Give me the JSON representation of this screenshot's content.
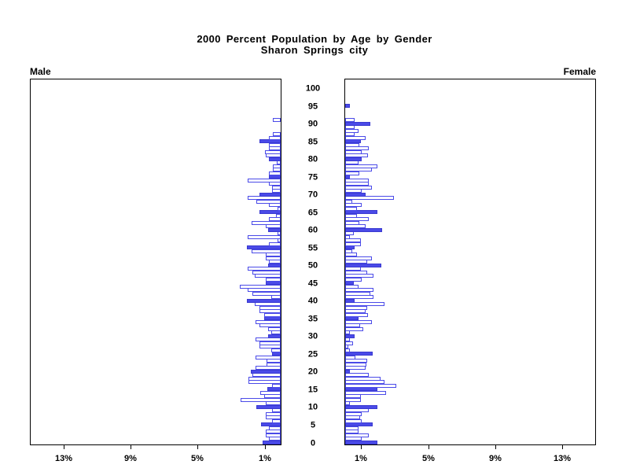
{
  "header": {
    "title_line1": "2000 Percent Population by Age by Gender",
    "title_line2": "Sharon Springs city"
  },
  "chart_data": {
    "type": "bar",
    "subtype": "population-pyramid",
    "title": "2000 Percent Population by Age by Gender",
    "subtitle": "Sharon Springs city",
    "left_side_label": "Male",
    "right_side_label": "Female",
    "unit": "percent of total population per single year of age",
    "xlim_each_side": [
      0,
      15
    ],
    "x_tick_percents": [
      1,
      5,
      9,
      13
    ],
    "x_tick_label_suffix": "%",
    "age_axis_tick_step": 5,
    "age_axis_ticks": [
      "0",
      "5",
      "10",
      "15",
      "20",
      "25",
      "30",
      "35",
      "40",
      "45",
      "50",
      "55",
      "60",
      "65",
      "70",
      "75",
      "80",
      "85",
      "90",
      "95",
      "100"
    ],
    "highlight_every_5_years_color": "#4a4ae8",
    "bar_outline_color": "#4a4ae8",
    "axis_color": "#000000",
    "grid": false,
    "ages": "index of values arrays = age in years, 0 through 100",
    "series": [
      {
        "name": "Male",
        "values": [
          1.1,
          0.7,
          0.9,
          0.9,
          0.7,
          1.15,
          0.5,
          0.9,
          0.9,
          0.5,
          1.45,
          0.9,
          2.4,
          1.0,
          1.2,
          0.8,
          0.5,
          1.9,
          1.9,
          1.7,
          1.8,
          1.5,
          0.85,
          0.85,
          1.5,
          0.5,
          0.55,
          1.25,
          1.25,
          1.5,
          0.75,
          0.55,
          0.75,
          1.25,
          1.5,
          1.0,
          1.0,
          1.25,
          1.25,
          1.55,
          2.0,
          0.55,
          1.7,
          1.95,
          2.45,
          0.9,
          0.9,
          1.55,
          1.7,
          1.95,
          0.75,
          0.7,
          0.9,
          0.9,
          1.75,
          2.0,
          0.7,
          0.2,
          1.95,
          0.2,
          0.75,
          0.9,
          1.75,
          0.7,
          0.3,
          1.25,
          0.2,
          0.7,
          1.45,
          1.95,
          1.25,
          0.5,
          0.5,
          0.7,
          1.95,
          0.7,
          0.7,
          0.45,
          0.45,
          0.25,
          0.7,
          0.9,
          0.95,
          0.7,
          0.7,
          1.25,
          0.7,
          0.45,
          0.0,
          0.0,
          0.0,
          0.45,
          0.0,
          0.0,
          0.0,
          0.0,
          0.0,
          0.0,
          0.0,
          0.0,
          0.0
        ]
      },
      {
        "name": "Female",
        "values": [
          1.9,
          1.0,
          1.4,
          0.8,
          0.8,
          1.65,
          1.0,
          0.9,
          1.0,
          1.4,
          1.9,
          0.3,
          0.95,
          0.95,
          2.45,
          1.9,
          3.05,
          2.35,
          2.1,
          1.4,
          0.3,
          1.2,
          1.25,
          1.3,
          0.6,
          1.65,
          0.3,
          0.2,
          0.45,
          0.3,
          0.55,
          0.3,
          1.1,
          0.9,
          1.6,
          0.8,
          1.35,
          1.2,
          1.3,
          2.35,
          0.55,
          1.7,
          1.5,
          1.7,
          0.8,
          0.5,
          1.0,
          1.7,
          1.3,
          0.95,
          2.15,
          1.3,
          1.6,
          0.7,
          0.4,
          0.55,
          0.95,
          0.95,
          0.3,
          0.5,
          2.2,
          1.2,
          0.85,
          1.4,
          0.7,
          1.9,
          0.7,
          1.0,
          0.4,
          2.9,
          1.2,
          1.0,
          1.6,
          1.4,
          1.4,
          0.3,
          0.85,
          1.6,
          1.9,
          0.8,
          1.0,
          1.35,
          1.0,
          1.4,
          0.85,
          0.95,
          1.2,
          0.55,
          0.8,
          0.55,
          1.5,
          0.55,
          0.0,
          0.0,
          0.0,
          0.3,
          0.0,
          0.0,
          0.0,
          0.0,
          0.0
        ]
      }
    ]
  }
}
